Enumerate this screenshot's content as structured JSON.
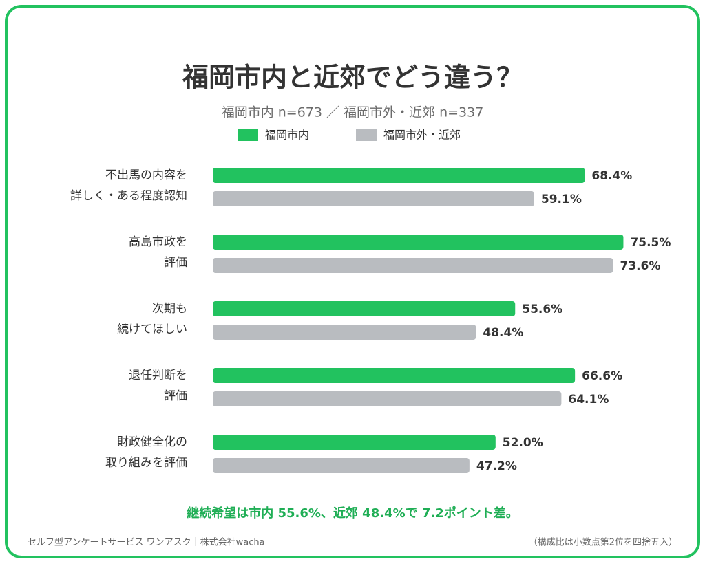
{
  "chart_data": {
    "type": "bar",
    "orientation": "horizontal",
    "title": "福岡市内と近郊でどう違う？",
    "subtitle": "福岡市内 n=673 ／ 福岡市外・近郊 n=337",
    "categories": [
      [
        "不出馬の内容を",
        "詳しく・ある程度認知"
      ],
      [
        "高島市政を",
        "評価"
      ],
      [
        "次期も",
        "続けてほしい"
      ],
      [
        "退任判断を",
        "評価"
      ],
      [
        "財政健全化の",
        "取り組みを評価"
      ]
    ],
    "series": [
      {
        "name": "福岡市内",
        "color": "#22c25f",
        "values": [
          68.4,
          75.5,
          55.6,
          66.6,
          52.0
        ],
        "value_labels": [
          "68.4%",
          "75.5%",
          "55.6%",
          "66.6%",
          "52.0%"
        ]
      },
      {
        "name": "福岡市外・近郊",
        "color": "#b9bcc0",
        "values": [
          59.1,
          73.6,
          48.4,
          64.1,
          47.2
        ],
        "value_labels": [
          "59.1%",
          "73.6%",
          "48.4%",
          "64.1%",
          "47.2%"
        ]
      }
    ],
    "annotation": "継続希望は市内 55.6%、近郊 48.4%で 7.2ポイント差。",
    "footer_left": "セルフ型アンケートサービス ワンアスク｜株式会社wacha",
    "footer_right": "（構成比は小数点第2位を四捨五入）"
  }
}
